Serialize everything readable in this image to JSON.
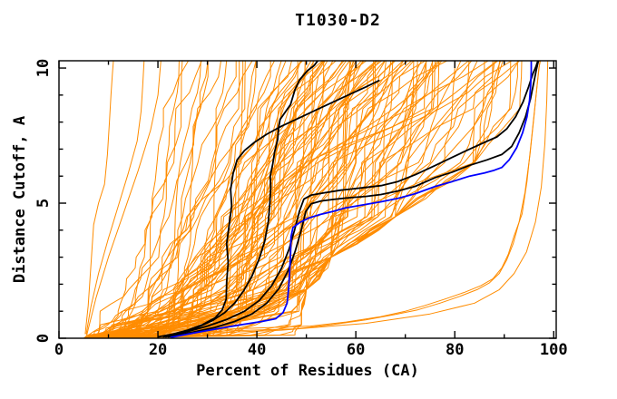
{
  "chart_data": {
    "type": "line",
    "title": "T1030-D2",
    "xlabel": "Percent of Residues (CA)",
    "ylabel": "Distance Cutoff, A",
    "xlim": [
      0,
      100.5
    ],
    "ylim": [
      0,
      10.27
    ],
    "x_ticks": {
      "major": [
        0,
        20,
        40,
        60,
        80,
        100
      ],
      "minor": [
        10,
        30,
        50,
        70,
        90
      ]
    },
    "y_ticks": {
      "major": [
        0,
        5,
        10
      ],
      "minor": [
        1,
        2,
        3,
        4,
        6,
        7,
        8,
        9
      ]
    },
    "grid": false,
    "legend": "none",
    "colors": {
      "ensemble": "#FF8C00",
      "highlight": "#000000",
      "reference": "#0000FF",
      "axis": "#000000",
      "background": "#FFFFFF"
    },
    "series": [
      {
        "name": "highlight-black-1",
        "color": "#000000",
        "width": 1.8,
        "points": [
          [
            20,
            0.05
          ],
          [
            23,
            0.15
          ],
          [
            26,
            0.3
          ],
          [
            29,
            0.5
          ],
          [
            31.5,
            0.75
          ],
          [
            33,
            1.05
          ],
          [
            33.8,
            1.45
          ],
          [
            33.9,
            2.1
          ],
          [
            34.2,
            2.8
          ],
          [
            33.9,
            3.5
          ],
          [
            34.4,
            4.2
          ],
          [
            34.9,
            4.9
          ],
          [
            34.7,
            5.5
          ],
          [
            35.2,
            6.1
          ],
          [
            36,
            6.6
          ],
          [
            37.5,
            6.95
          ],
          [
            39.5,
            7.25
          ],
          [
            42,
            7.55
          ],
          [
            45,
            7.85
          ],
          [
            48.5,
            8.15
          ],
          [
            52,
            8.45
          ],
          [
            55.5,
            8.75
          ],
          [
            59,
            9.05
          ],
          [
            62,
            9.3
          ],
          [
            64.8,
            9.55
          ]
        ]
      },
      {
        "name": "highlight-black-2",
        "color": "#000000",
        "width": 1.8,
        "points": [
          [
            21,
            0.05
          ],
          [
            24.5,
            0.2
          ],
          [
            28,
            0.4
          ],
          [
            31,
            0.65
          ],
          [
            33.5,
            0.95
          ],
          [
            35.5,
            1.3
          ],
          [
            37.3,
            1.75
          ],
          [
            39,
            2.3
          ],
          [
            40.5,
            2.95
          ],
          [
            41.6,
            3.6
          ],
          [
            42.3,
            4.3
          ],
          [
            42.6,
            4.95
          ],
          [
            42.8,
            5.6
          ],
          [
            42.7,
            6.0
          ],
          [
            43.2,
            6.45
          ],
          [
            43.6,
            6.9
          ],
          [
            44.2,
            7.35
          ],
          [
            44.4,
            7.8
          ],
          [
            44.7,
            8.1
          ],
          [
            46.8,
            8.65
          ],
          [
            47.7,
            9.2
          ],
          [
            48.6,
            9.55
          ],
          [
            50.2,
            9.9
          ],
          [
            51.6,
            10.1
          ],
          [
            52.3,
            10.27
          ]
        ]
      },
      {
        "name": "highlight-black-3",
        "color": "#000000",
        "width": 1.8,
        "points": [
          [
            21.5,
            0.05
          ],
          [
            26,
            0.25
          ],
          [
            30,
            0.45
          ],
          [
            34,
            0.7
          ],
          [
            37.5,
            1.0
          ],
          [
            40.5,
            1.4
          ],
          [
            43,
            1.95
          ],
          [
            45,
            2.6
          ],
          [
            46.5,
            3.3
          ],
          [
            47.6,
            4.0
          ],
          [
            48.6,
            4.7
          ],
          [
            49.5,
            5.15
          ],
          [
            51,
            5.3
          ],
          [
            53.5,
            5.38
          ],
          [
            57,
            5.48
          ],
          [
            61,
            5.56
          ],
          [
            65.1,
            5.65
          ],
          [
            68.5,
            5.8
          ],
          [
            72,
            6.05
          ],
          [
            76.1,
            6.4
          ],
          [
            79.5,
            6.7
          ],
          [
            83,
            7.0
          ],
          [
            86,
            7.25
          ],
          [
            88.5,
            7.45
          ],
          [
            90.5,
            7.75
          ],
          [
            92.3,
            8.2
          ],
          [
            93.8,
            8.75
          ],
          [
            94.9,
            9.3
          ],
          [
            95.8,
            9.8
          ],
          [
            96.4,
            10.05
          ],
          [
            96.8,
            10.27
          ]
        ]
      },
      {
        "name": "highlight-black-4",
        "color": "#000000",
        "width": 1.8,
        "points": [
          [
            22,
            0.05
          ],
          [
            27,
            0.22
          ],
          [
            31.5,
            0.4
          ],
          [
            35.5,
            0.62
          ],
          [
            39,
            0.9
          ],
          [
            42,
            1.3
          ],
          [
            44.5,
            1.85
          ],
          [
            46.3,
            2.5
          ],
          [
            47.7,
            3.2
          ],
          [
            48.9,
            3.95
          ],
          [
            49.9,
            4.7
          ],
          [
            51,
            4.98
          ],
          [
            53,
            5.08
          ],
          [
            55.5,
            5.14
          ],
          [
            58.5,
            5.2
          ],
          [
            62,
            5.25
          ],
          [
            65.1,
            5.32
          ],
          [
            68.5,
            5.45
          ],
          [
            72,
            5.62
          ],
          [
            76.1,
            5.95
          ],
          [
            79.5,
            6.15
          ],
          [
            83,
            6.4
          ],
          [
            86.5,
            6.6
          ],
          [
            89.5,
            6.8
          ],
          [
            91.5,
            7.1
          ],
          [
            93,
            7.6
          ],
          [
            94.3,
            8.2
          ],
          [
            95.3,
            8.85
          ],
          [
            96,
            9.5
          ],
          [
            96.5,
            9.95
          ],
          [
            96.9,
            10.27
          ]
        ]
      },
      {
        "name": "reference-blue",
        "color": "#0000FF",
        "width": 1.8,
        "points": [
          [
            22.5,
            0.03
          ],
          [
            26,
            0.15
          ],
          [
            29.5,
            0.27
          ],
          [
            33.5,
            0.4
          ],
          [
            37.5,
            0.52
          ],
          [
            41,
            0.62
          ],
          [
            43.8,
            0.72
          ],
          [
            45.3,
            0.95
          ],
          [
            46.1,
            1.3
          ],
          [
            46.4,
            1.8
          ],
          [
            46.6,
            2.4
          ],
          [
            46.8,
            3.1
          ],
          [
            46.9,
            3.75
          ],
          [
            47.3,
            4.1
          ],
          [
            48.8,
            4.3
          ],
          [
            50.5,
            4.45
          ],
          [
            52.8,
            4.58
          ],
          [
            55.5,
            4.7
          ],
          [
            57.8,
            4.82
          ],
          [
            61,
            4.92
          ],
          [
            65.1,
            5.05
          ],
          [
            68.5,
            5.18
          ],
          [
            72,
            5.35
          ],
          [
            76.1,
            5.62
          ],
          [
            79.5,
            5.8
          ],
          [
            83,
            6.0
          ],
          [
            86,
            6.12
          ],
          [
            88,
            6.22
          ],
          [
            89.5,
            6.32
          ],
          [
            91,
            6.6
          ],
          [
            92.5,
            7.05
          ],
          [
            93.7,
            7.6
          ],
          [
            94.6,
            8.2
          ],
          [
            95.1,
            8.8
          ],
          [
            95.35,
            9.4
          ],
          [
            95.45,
            9.9
          ],
          [
            95.45,
            10.27
          ]
        ]
      }
    ],
    "outlier_series": [
      {
        "name": "orange-left-1",
        "color": "#FF8C00",
        "width": 1,
        "points": [
          [
            5.3,
            0.15
          ],
          [
            5.9,
            1.2
          ],
          [
            6.5,
            2.8
          ],
          [
            7,
            4.2
          ],
          [
            8,
            5.0
          ],
          [
            9.2,
            5.7
          ],
          [
            9.8,
            6.8
          ],
          [
            10.2,
            8.0
          ],
          [
            10.5,
            9.0
          ],
          [
            10.8,
            9.8
          ],
          [
            11,
            10.27
          ]
        ]
      },
      {
        "name": "orange-left-2",
        "color": "#FF8C00",
        "width": 1,
        "points": [
          [
            5.5,
            0.15
          ],
          [
            6.5,
            1.2
          ],
          [
            8,
            2.4
          ],
          [
            10,
            3.7
          ],
          [
            12,
            4.9
          ],
          [
            14,
            6.1
          ],
          [
            15.8,
            7.3
          ],
          [
            16.6,
            8.4
          ],
          [
            16.9,
            9.3
          ],
          [
            17.2,
            10.27
          ]
        ]
      },
      {
        "name": "orange-left-3",
        "color": "#FF8C00",
        "width": 1,
        "points": [
          [
            5.6,
            0.1
          ],
          [
            7.5,
            1.5
          ],
          [
            10,
            3.0
          ],
          [
            13,
            4.6
          ],
          [
            16,
            6.2
          ],
          [
            18.5,
            7.7
          ],
          [
            20,
            9.0
          ],
          [
            20.6,
            10.27
          ]
        ]
      },
      {
        "name": "orange-right-1",
        "color": "#FF8C00",
        "width": 1,
        "points": [
          [
            6,
            0.1
          ],
          [
            15,
            0.2
          ],
          [
            28,
            0.3
          ],
          [
            40,
            0.38
          ],
          [
            50.8,
            0.45
          ],
          [
            58,
            0.6
          ],
          [
            65,
            0.8
          ],
          [
            70,
            1.0
          ],
          [
            73.8,
            1.2
          ],
          [
            78,
            1.45
          ],
          [
            82,
            1.7
          ],
          [
            85.3,
            1.95
          ],
          [
            87.7,
            2.2
          ],
          [
            89.5,
            2.6
          ],
          [
            90.8,
            3.1
          ],
          [
            92,
            3.8
          ],
          [
            93.6,
            4.6
          ],
          [
            94.6,
            5.8
          ],
          [
            95.4,
            7.2
          ],
          [
            96.2,
            8.6
          ],
          [
            96.8,
            9.6
          ],
          [
            97.2,
            10.27
          ]
        ]
      },
      {
        "name": "orange-right-2",
        "color": "#FF8C00",
        "width": 1,
        "points": [
          [
            6,
            0.08
          ],
          [
            20,
            0.18
          ],
          [
            35,
            0.28
          ],
          [
            48,
            0.35
          ],
          [
            55,
            0.5
          ],
          [
            62,
            0.68
          ],
          [
            68,
            0.88
          ],
          [
            72.5,
            1.05
          ],
          [
            77,
            1.3
          ],
          [
            81,
            1.55
          ],
          [
            84.5,
            1.8
          ],
          [
            87,
            2.05
          ],
          [
            89,
            2.4
          ],
          [
            90.5,
            2.9
          ],
          [
            91.8,
            3.5
          ],
          [
            93,
            4.3
          ],
          [
            94.2,
            5.4
          ],
          [
            95.2,
            6.8
          ],
          [
            96,
            8.2
          ],
          [
            96.6,
            9.3
          ],
          [
            97,
            10.0
          ],
          [
            97.3,
            10.27
          ]
        ]
      },
      {
        "name": "orange-right-3",
        "color": "#FF8C00",
        "width": 1,
        "points": [
          [
            6,
            0.05
          ],
          [
            25,
            0.15
          ],
          [
            45,
            0.3
          ],
          [
            62,
            0.55
          ],
          [
            75,
            0.9
          ],
          [
            84,
            1.3
          ],
          [
            89,
            1.8
          ],
          [
            92,
            2.4
          ],
          [
            94.5,
            3.2
          ],
          [
            96.3,
            4.3
          ],
          [
            97.5,
            5.6
          ],
          [
            98.2,
            7.2
          ],
          [
            98.6,
            8.8
          ],
          [
            98.8,
            10.27
          ]
        ]
      }
    ],
    "ensemble": {
      "color": "#FF8C00",
      "count": 110,
      "seed": 1030,
      "start_percent": 5
    }
  }
}
